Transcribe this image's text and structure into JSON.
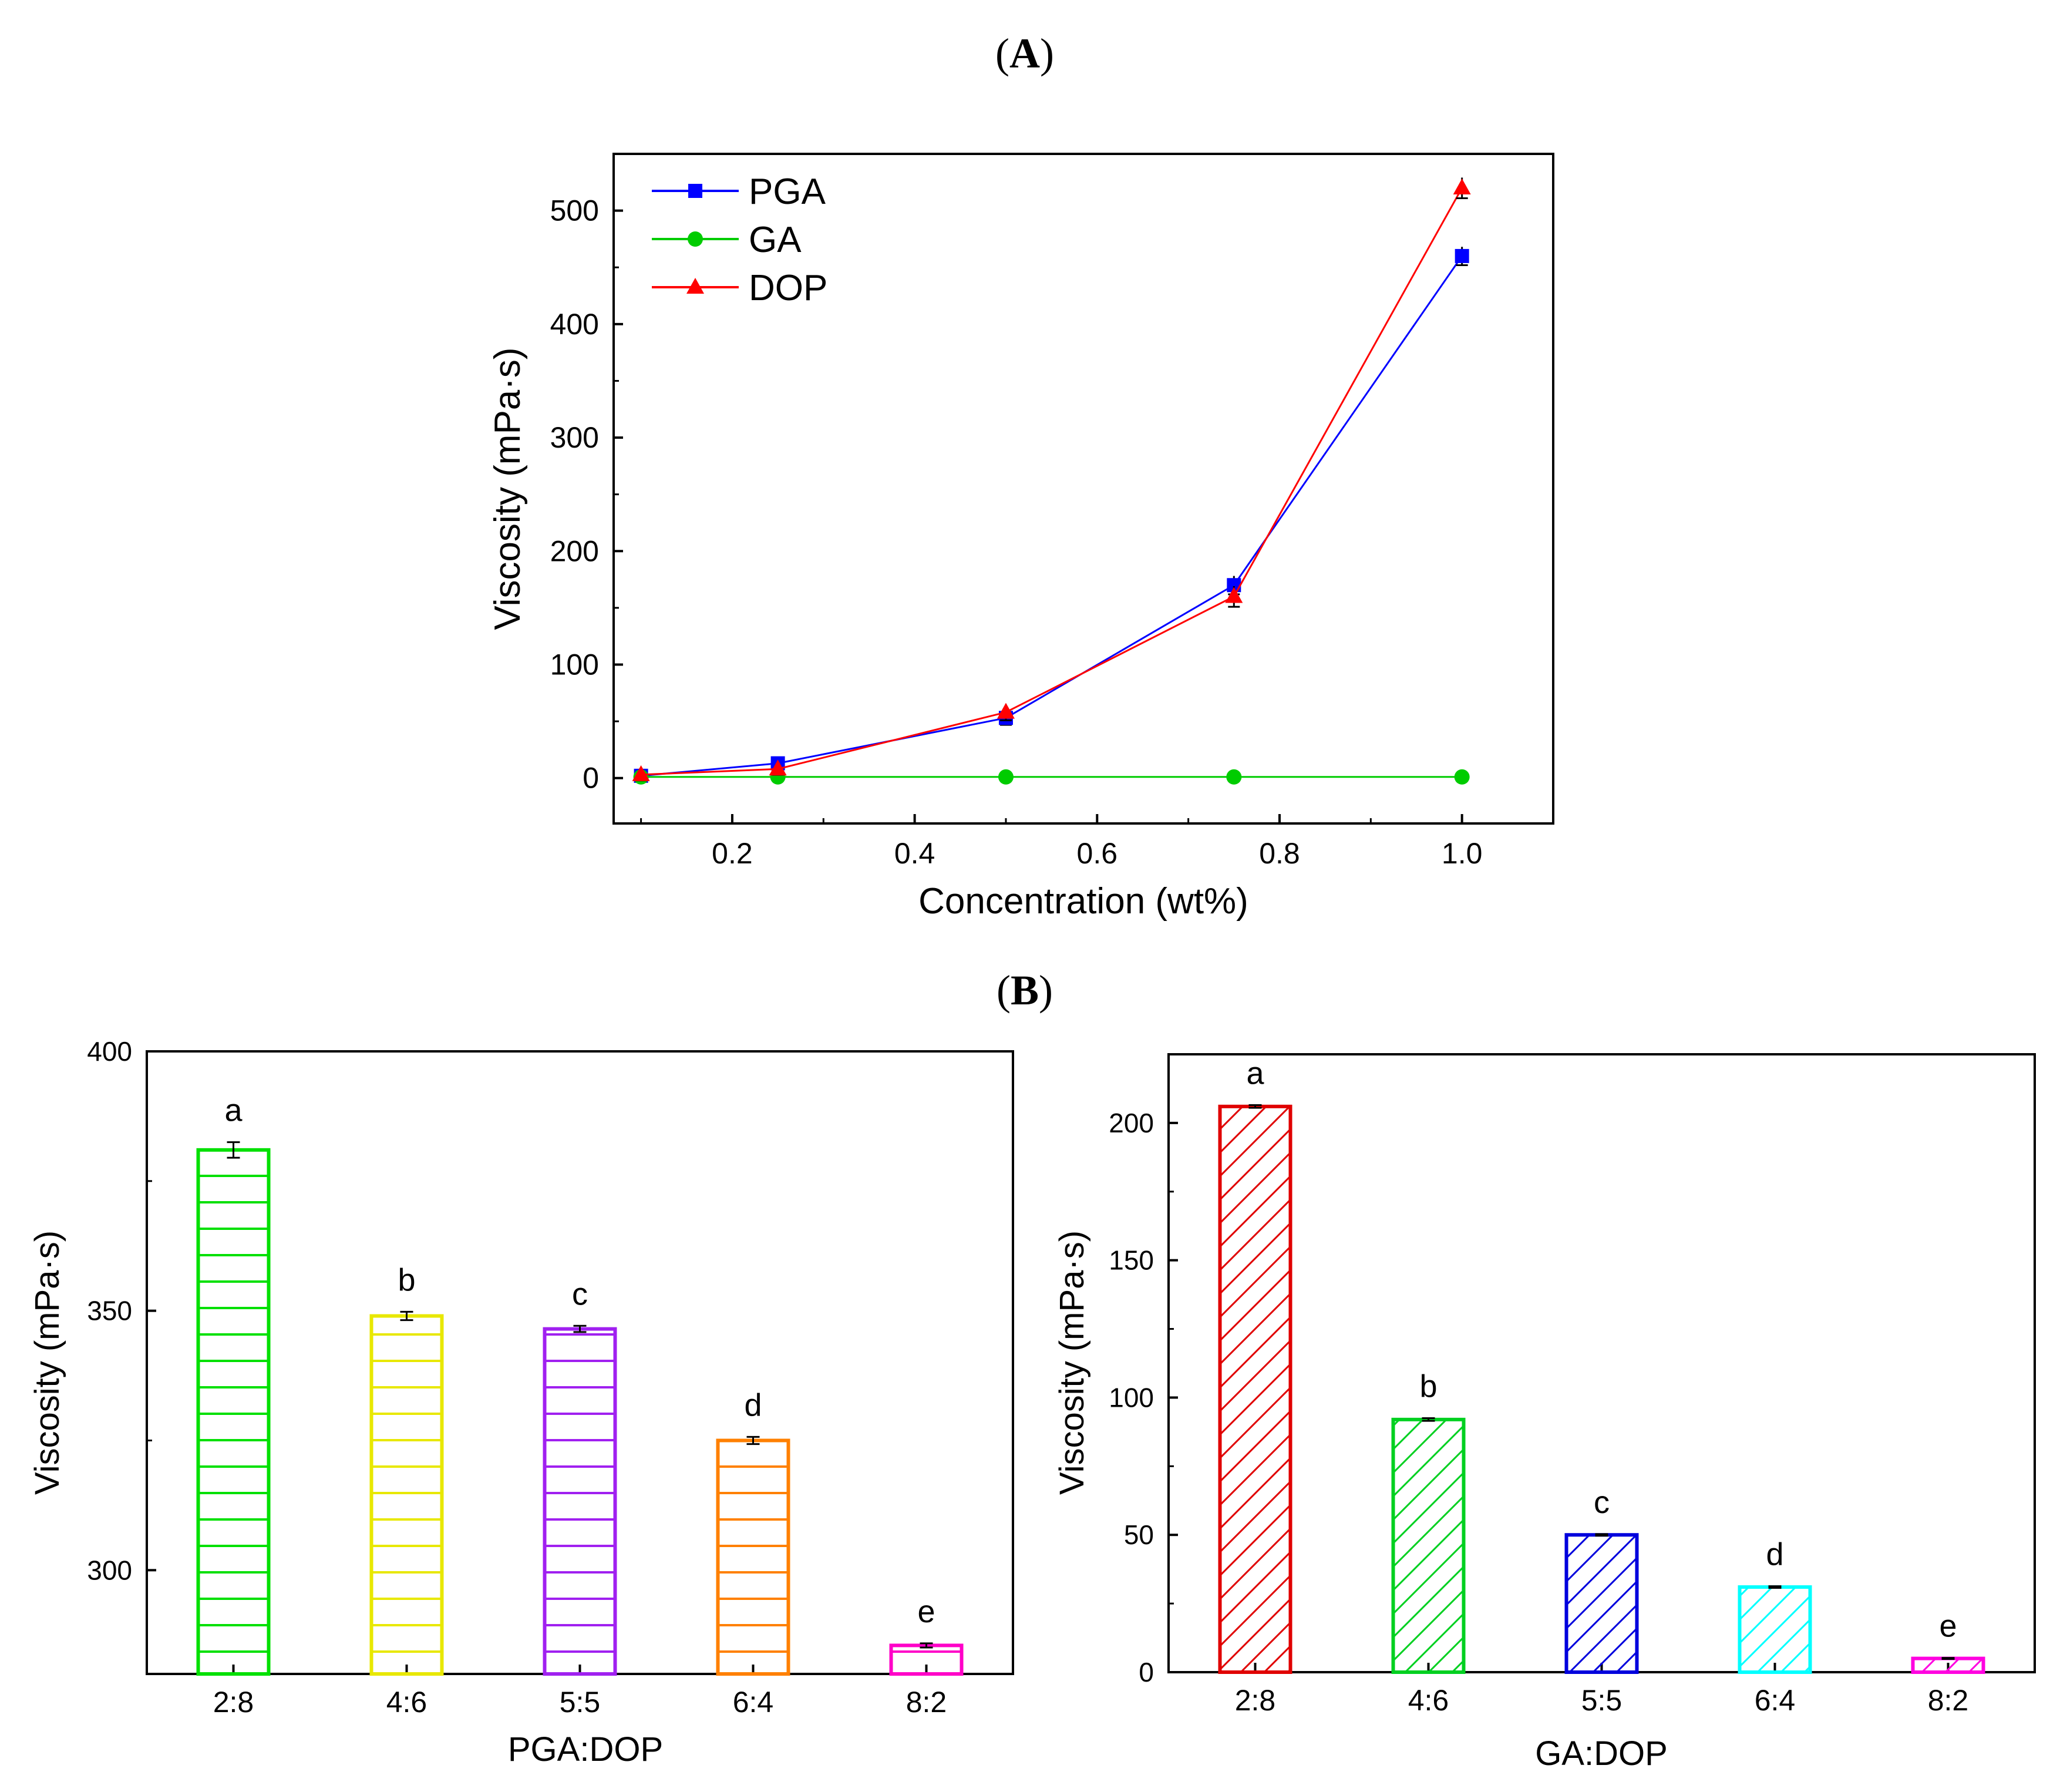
{
  "panels": {
    "a_label": "A",
    "b_label": "B"
  },
  "chart_data": [
    {
      "id": "A",
      "type": "line",
      "xlabel": "Concentration (wt%)",
      "ylabel": "Viscosity (mPa·s)",
      "xlim": [
        0.07,
        1.1
      ],
      "ylim": [
        -40,
        550
      ],
      "xticks": [
        0.2,
        0.4,
        0.6,
        0.8,
        1.0
      ],
      "xtick_labels": [
        "0.2",
        "0.4",
        "0.6",
        "0.8",
        "1.0"
      ],
      "yticks": [
        0,
        100,
        200,
        300,
        400,
        500
      ],
      "ytick_labels": [
        "0",
        "100",
        "200",
        "300",
        "400",
        "500"
      ],
      "legend_position": "top-left",
      "x": [
        0.1,
        0.25,
        0.5,
        0.75,
        1.0
      ],
      "series": [
        {
          "name": "PGA",
          "color": "#0000ff",
          "marker": "square",
          "values": [
            2,
            13,
            53,
            170,
            460
          ],
          "errors": [
            2,
            2,
            3,
            5,
            5
          ]
        },
        {
          "name": "GA",
          "color": "#00cc00",
          "marker": "circle",
          "values": [
            1,
            1,
            1,
            1,
            1
          ],
          "errors": [
            0.5,
            0.5,
            0.5,
            0.5,
            0.5
          ]
        },
        {
          "name": "DOP",
          "color": "#ff0000",
          "marker": "triangle",
          "values": [
            3,
            8,
            58,
            160,
            520
          ],
          "errors": [
            2,
            2,
            4,
            6,
            6
          ]
        }
      ]
    },
    {
      "id": "B-left",
      "type": "bar",
      "xlabel": "PGA:DOP",
      "ylabel": "Viscosity (mPa·s)",
      "ylim": [
        280,
        400
      ],
      "yticks": [
        300,
        350,
        400
      ],
      "ytick_labels": [
        "300",
        "350",
        "400"
      ],
      "categories": [
        "2:8",
        "4:6",
        "5:5",
        "6:4",
        "8:2"
      ],
      "values": [
        381,
        349,
        346.5,
        325,
        285.5
      ],
      "errors": [
        1.5,
        0.8,
        0.6,
        0.7,
        0.4
      ],
      "letters": [
        "a",
        "b",
        "c",
        "d",
        "e"
      ],
      "colors": [
        "#00e000",
        "#e8e800",
        "#a020f0",
        "#ff8000",
        "#ff00c8"
      ],
      "pattern": "horizontal"
    },
    {
      "id": "B-right",
      "type": "bar",
      "xlabel": "GA:DOP",
      "ylabel": "Viscosity (mPa·s)",
      "ylim": [
        0,
        225
      ],
      "yticks": [
        0,
        50,
        100,
        150,
        200
      ],
      "ytick_labels": [
        "0",
        "50",
        "100",
        "150",
        "200"
      ],
      "categories": [
        "2:8",
        "4:6",
        "5:5",
        "6:4",
        "8:2"
      ],
      "values": [
        206,
        92,
        50,
        31,
        5
      ],
      "errors": [
        0.5,
        0.5,
        0.3,
        0.3,
        0.2
      ],
      "letters": [
        "a",
        "b",
        "c",
        "d",
        "e"
      ],
      "colors": [
        "#e00000",
        "#00d020",
        "#0000dd",
        "#00ffff",
        "#ff00e0"
      ],
      "pattern": "diagonal"
    }
  ]
}
